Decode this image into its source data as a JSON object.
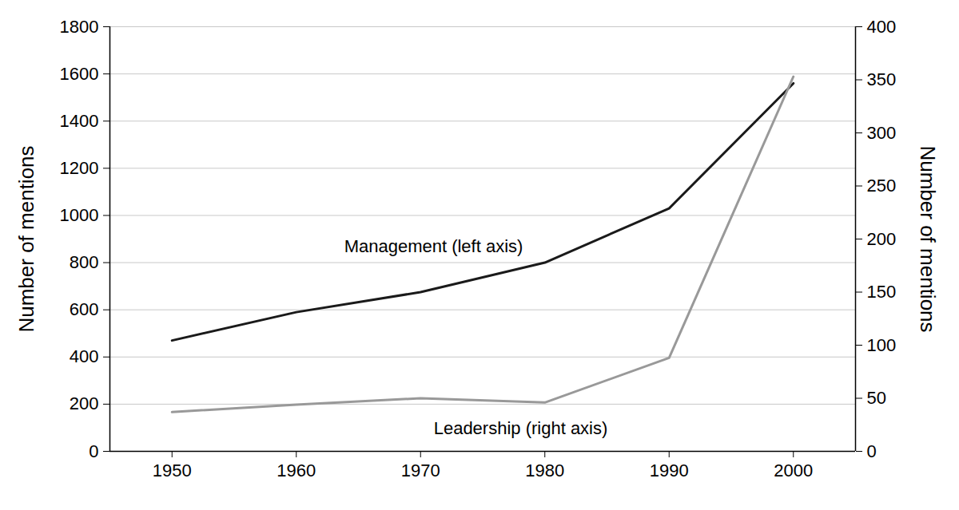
{
  "chart_data": {
    "type": "line",
    "x": [
      1950,
      1960,
      1970,
      1980,
      1990,
      2000
    ],
    "xlim": [
      1945,
      2005
    ],
    "xticks": [
      1950,
      1960,
      1970,
      1980,
      1990,
      2000
    ],
    "ylim": [
      0,
      1800
    ],
    "yticks": [
      0,
      200,
      400,
      600,
      800,
      1000,
      1200,
      1400,
      1600,
      1800
    ],
    "y2lim": [
      0,
      400
    ],
    "y2ticks": [
      0,
      50,
      100,
      150,
      200,
      250,
      300,
      350,
      400
    ],
    "ylabel": "Number of mentions",
    "y2label": "Number of mentions",
    "grid": true,
    "series": [
      {
        "name": "Management (left axis)",
        "color": "#1a1a1a",
        "values": [
          470,
          590,
          675,
          800,
          1030,
          1560
        ]
      },
      {
        "name": "Leadership (right axis)",
        "color": "#999999",
        "axis": "y2",
        "values": [
          37,
          44,
          50,
          46,
          88,
          353
        ]
      }
    ]
  }
}
